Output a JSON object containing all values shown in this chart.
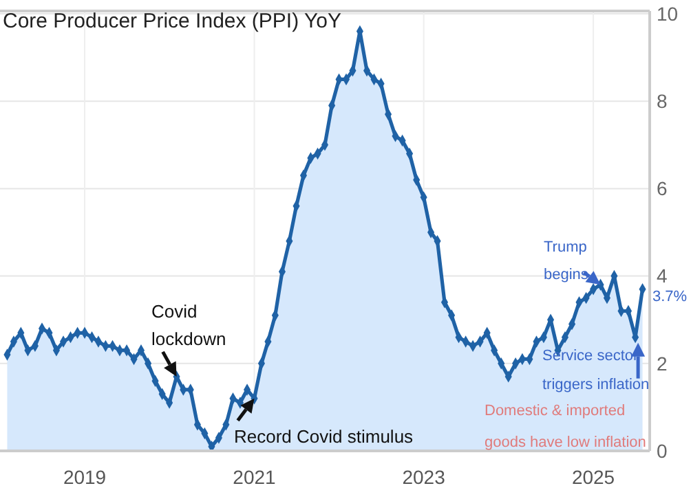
{
  "chart_data": {
    "type": "area",
    "title": "Core Producer Price Index (PPI) YoY",
    "xlim": [
      "2018-01",
      "2025-09"
    ],
    "xticks": [
      {
        "value": "2019-01",
        "label": "2019"
      },
      {
        "value": "2021-01",
        "label": "2021"
      },
      {
        "value": "2023-01",
        "label": "2023"
      },
      {
        "value": "2025-01",
        "label": "2025"
      }
    ],
    "ylim": [
      0,
      10
    ],
    "yticks": [
      0,
      2,
      4,
      6,
      8,
      10
    ],
    "grid": true,
    "marker": "diamond",
    "series": [
      {
        "color": "#1f62a6",
        "x": [
          "2018-02",
          "2018-03",
          "2018-04",
          "2018-05",
          "2018-06",
          "2018-07",
          "2018-08",
          "2018-09",
          "2018-10",
          "2018-11",
          "2018-12",
          "2019-01",
          "2019-02",
          "2019-03",
          "2019-04",
          "2019-05",
          "2019-06",
          "2019-07",
          "2019-08",
          "2019-09",
          "2019-10",
          "2019-11",
          "2019-12",
          "2020-01",
          "2020-02",
          "2020-03",
          "2020-04",
          "2020-05",
          "2020-06",
          "2020-07",
          "2020-08",
          "2020-09",
          "2020-10",
          "2020-11",
          "2020-12",
          "2021-01",
          "2021-02",
          "2021-03",
          "2021-04",
          "2021-05",
          "2021-06",
          "2021-07",
          "2021-08",
          "2021-09",
          "2021-10",
          "2021-11",
          "2021-12",
          "2022-01",
          "2022-02",
          "2022-03",
          "2022-04",
          "2022-05",
          "2022-06",
          "2022-07",
          "2022-08",
          "2022-09",
          "2022-10",
          "2022-11",
          "2022-12",
          "2023-01",
          "2023-02",
          "2023-03",
          "2023-04",
          "2023-05",
          "2023-06",
          "2023-07",
          "2023-08",
          "2023-09",
          "2023-10",
          "2023-11",
          "2023-12",
          "2024-01",
          "2024-02",
          "2024-03",
          "2024-04",
          "2024-05",
          "2024-06",
          "2024-07",
          "2024-08",
          "2024-09",
          "2024-10",
          "2024-11",
          "2024-12",
          "2025-01",
          "2025-02",
          "2025-03",
          "2025-04",
          "2025-05",
          "2025-06",
          "2025-07",
          "2025-08"
        ],
        "values": [
          2.2,
          2.5,
          2.7,
          2.3,
          2.4,
          2.8,
          2.7,
          2.3,
          2.5,
          2.6,
          2.7,
          2.7,
          2.6,
          2.5,
          2.4,
          2.4,
          2.3,
          2.3,
          2.1,
          2.3,
          2.0,
          1.6,
          1.3,
          1.1,
          1.7,
          1.4,
          1.4,
          0.6,
          0.4,
          0.1,
          0.3,
          0.6,
          1.2,
          1.1,
          1.4,
          1.2,
          2.0,
          2.5,
          3.1,
          4.1,
          4.8,
          5.6,
          6.3,
          6.7,
          6.8,
          7.0,
          7.9,
          8.5,
          8.5,
          8.7,
          9.6,
          8.7,
          8.5,
          8.4,
          7.7,
          7.2,
          7.1,
          6.8,
          6.2,
          5.8,
          5.0,
          4.8,
          3.4,
          3.1,
          2.6,
          2.5,
          2.4,
          2.5,
          2.7,
          2.3,
          2.0,
          1.7,
          2.0,
          2.1,
          2.1,
          2.5,
          2.6,
          3.0,
          2.3,
          2.6,
          2.9,
          3.4,
          3.5,
          3.7,
          3.8,
          3.5,
          4.0,
          3.2,
          3.2,
          2.6,
          3.7
        ]
      }
    ],
    "annotations": [
      {
        "text": "Covid lockdown",
        "x": "2020-02",
        "y": 1.7
      },
      {
        "text": "Record Covid stimulus",
        "x": "2021-01",
        "y": 1.2
      },
      {
        "text": "Trump begins",
        "x": "2025-02",
        "y": 3.8
      },
      {
        "text": "Service sector triggers inflation",
        "x": "2025-07",
        "y": 2.6
      },
      {
        "text": "3.7%",
        "x": "2025-08",
        "y": 3.7
      },
      "Domestic & imported goods have low inflation"
    ]
  }
}
